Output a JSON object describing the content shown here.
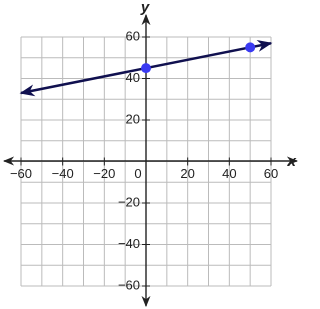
{
  "chart_data": {
    "type": "line",
    "x_label": "x",
    "y_label": "y",
    "xlim": [
      -60,
      60
    ],
    "ylim": [
      -60,
      60
    ],
    "xticks": [
      -60,
      -40,
      -20,
      0,
      20,
      40,
      60
    ],
    "yticks": [
      -60,
      -40,
      -20,
      20,
      40,
      60
    ],
    "xgrid": [
      -60,
      -50,
      -40,
      -30,
      -20,
      -10,
      0,
      10,
      20,
      30,
      40,
      50,
      60
    ],
    "ygrid": [
      -60,
      -50,
      -40,
      -30,
      -20,
      -10,
      0,
      10,
      20,
      30,
      40,
      50,
      60
    ],
    "series": [
      {
        "x": [
          -60,
          60
        ],
        "values": [
          33,
          57
        ],
        "color": "#10104f",
        "arrows": true
      },
      {
        "x": [
          0,
          50
        ],
        "values": [
          45,
          55
        ],
        "color": "#3a3af2",
        "markers": true
      }
    ]
  }
}
